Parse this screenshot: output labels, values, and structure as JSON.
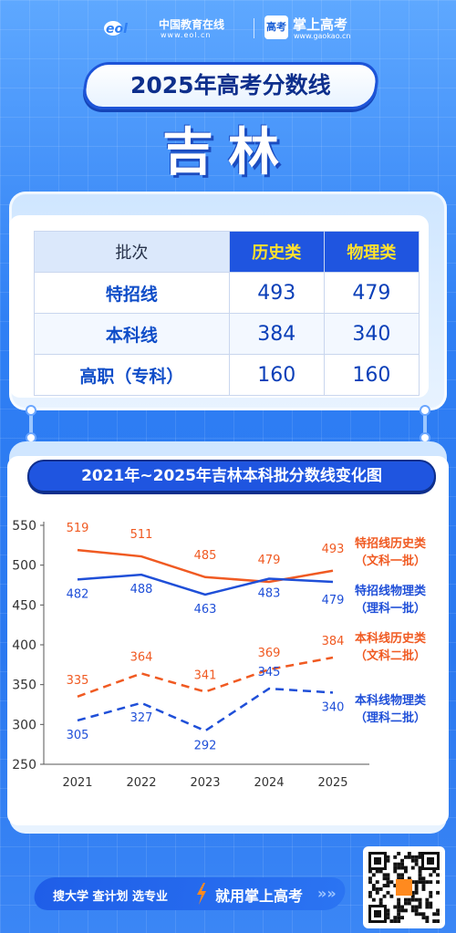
{
  "header": {
    "eol_logo_text": "eol",
    "eol_name": "中国教育在线",
    "eol_url": "www.eol.cn",
    "gk_badge": "高考",
    "gk_name": "掌上高考",
    "gk_url": "www.gaokao.cn"
  },
  "title": "2025年高考分数线",
  "province": "吉林",
  "table": {
    "headers": [
      "批次",
      "历史类",
      "物理类"
    ],
    "rows": [
      {
        "label": "特招线",
        "history": "493",
        "physics": "479"
      },
      {
        "label": "本科线",
        "history": "384",
        "physics": "340"
      },
      {
        "label": "高职（专科）",
        "history": "160",
        "physics": "160"
      }
    ]
  },
  "chart_title": "2021年~2025年吉林本科批分数线变化图",
  "chart_data": {
    "type": "line",
    "x": [
      "2021",
      "2022",
      "2023",
      "2024",
      "2025"
    ],
    "ylim": [
      250,
      550
    ],
    "yticks": [
      250,
      300,
      350,
      400,
      450,
      500,
      550
    ],
    "series": [
      {
        "name": "特招线历史类",
        "name2": "（文科一批）",
        "values": [
          519,
          511,
          485,
          479,
          493
        ],
        "color": "#f05a22",
        "dash": false
      },
      {
        "name": "特招线物理类",
        "name2": "（理科一批）",
        "values": [
          482,
          488,
          463,
          483,
          479
        ],
        "color": "#1f4fd8",
        "dash": false
      },
      {
        "name": "本科线历史类",
        "name2": "（文科二批）",
        "values": [
          335,
          364,
          341,
          369,
          384
        ],
        "color": "#f05a22",
        "dash": true
      },
      {
        "name": "本科线物理类",
        "name2": "（理科二批）",
        "values": [
          305,
          327,
          292,
          345,
          340
        ],
        "color": "#1f4fd8",
        "dash": true
      }
    ]
  },
  "footer": {
    "slogan": "搜大学  查计划  选专业",
    "cta": "就用掌上高考",
    "arrows": "»»"
  },
  "colors": {
    "primary": "#1f55e0",
    "accent": "#ffe12e",
    "history": "#f05a22",
    "physics": "#1f4fd8"
  }
}
